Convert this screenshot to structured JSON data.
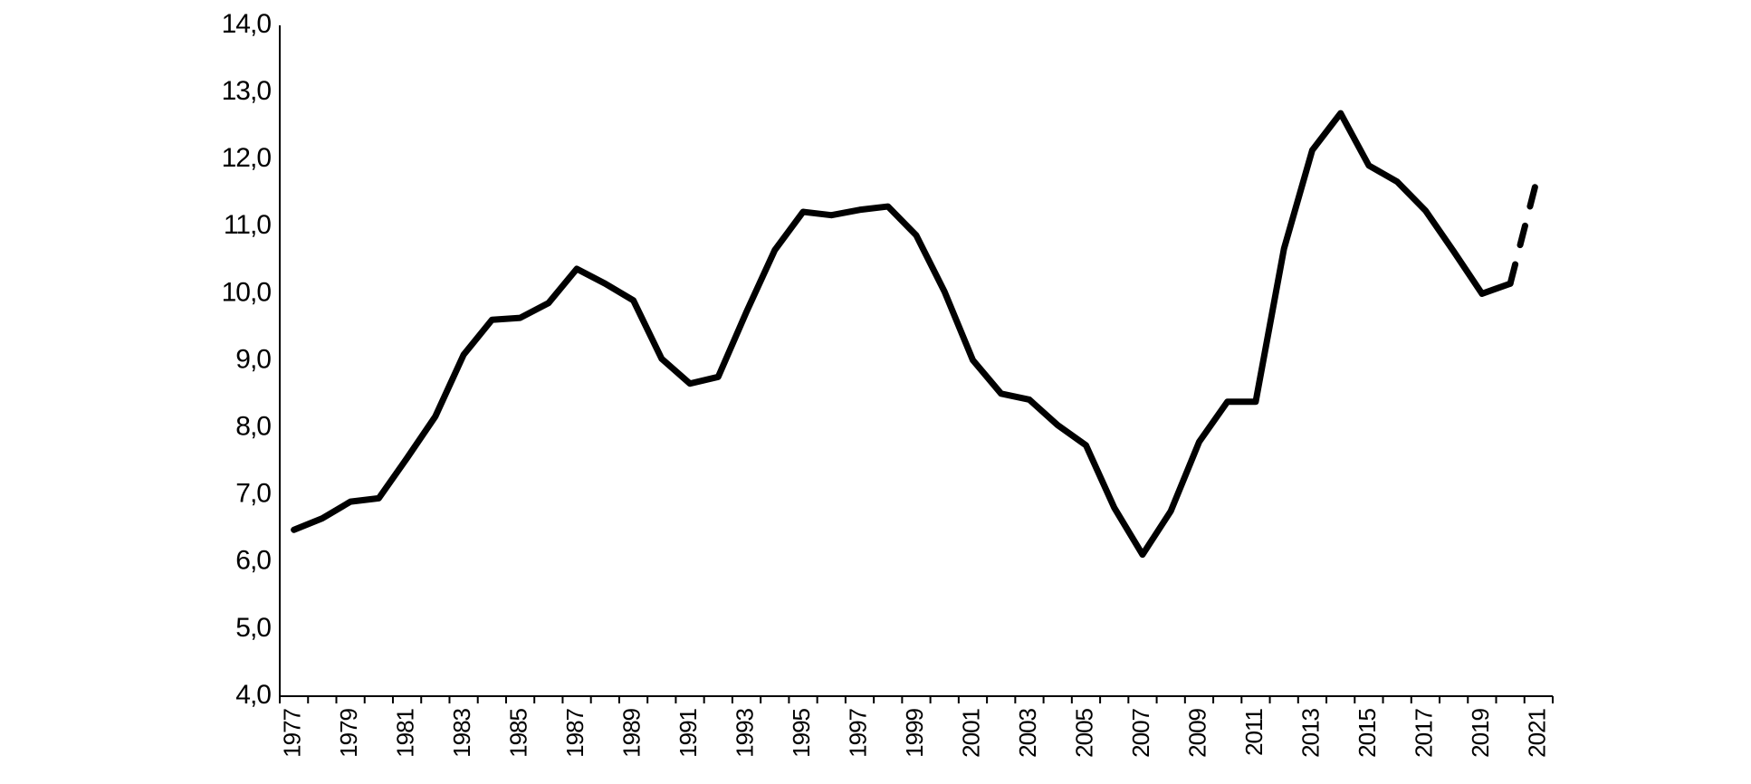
{
  "chart_data": {
    "type": "line",
    "categories": [
      "1977",
      null,
      "1979",
      null,
      "1981",
      null,
      "1983",
      null,
      "1985",
      null,
      "1987",
      null,
      "1989",
      null,
      "1991",
      null,
      "1993",
      null,
      "1995",
      null,
      "1997",
      null,
      "1999",
      null,
      "2001",
      null,
      "2003",
      null,
      "2005",
      null,
      "2007",
      null,
      "2009",
      null,
      "2011",
      null,
      "2013",
      null,
      "2015",
      null,
      "2017",
      null,
      "2019",
      null,
      "2021"
    ],
    "series": [
      {
        "color": "#000000",
        "dash": false,
        "values": [
          6.48,
          6.65,
          6.9,
          6.95,
          7.55,
          8.17,
          9.09,
          9.61,
          9.64,
          9.86,
          10.37,
          10.15,
          9.9,
          9.03,
          8.66,
          8.76,
          9.73,
          10.65,
          11.22,
          11.17,
          11.25,
          11.3,
          10.87,
          10.03,
          9.01,
          8.51,
          8.42,
          8.04,
          7.74,
          6.81,
          6.11,
          6.76,
          7.79,
          8.39,
          8.39,
          10.67,
          12.14,
          12.69,
          11.91,
          11.67,
          11.24,
          10.63,
          10.0,
          10.15,
          null
        ]
      },
      {
        "color": "#000000",
        "dash": true,
        "values": [
          null,
          null,
          null,
          null,
          null,
          null,
          null,
          null,
          null,
          null,
          null,
          null,
          null,
          null,
          null,
          null,
          null,
          null,
          null,
          null,
          null,
          null,
          null,
          null,
          null,
          null,
          null,
          null,
          null,
          null,
          null,
          null,
          null,
          null,
          null,
          null,
          null,
          null,
          null,
          null,
          null,
          null,
          null,
          10.15,
          11.8
        ]
      }
    ],
    "ylim": [
      4,
      14
    ],
    "yticks": [
      {
        "value": 4,
        "label": "4,0"
      },
      {
        "value": 5,
        "label": "5,0"
      },
      {
        "value": 6,
        "label": "6,0"
      },
      {
        "value": 7,
        "label": "7,0"
      },
      {
        "value": 8,
        "label": "8,0"
      },
      {
        "value": 9,
        "label": "9,0"
      },
      {
        "value": 10,
        "label": "10,0"
      },
      {
        "value": 11,
        "label": "11,0"
      },
      {
        "value": 12,
        "label": "12,0"
      },
      {
        "value": 13,
        "label": "13,0"
      },
      {
        "value": 14,
        "label": "14,0"
      }
    ],
    "grid": false
  }
}
